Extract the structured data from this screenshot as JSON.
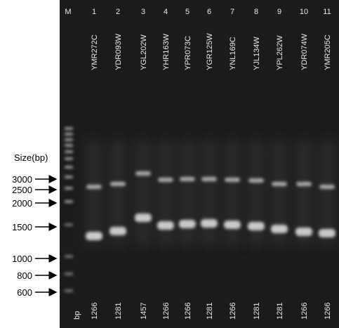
{
  "marker_lane": "M",
  "size_title": "Size(bp)",
  "size_markers": [
    3000,
    2500,
    2000,
    1500,
    1000,
    800,
    600
  ],
  "unit": "bp",
  "lanes": [
    {
      "number": "1",
      "name": "YMR272C",
      "size": 1266
    },
    {
      "number": "2",
      "name": "YDR093W",
      "size": 1281
    },
    {
      "number": "3",
      "name": "YGL202W",
      "size": 1457
    },
    {
      "number": "4",
      "name": "YHR163W",
      "size": 1266
    },
    {
      "number": "5",
      "name": "YPR073C",
      "size": 1266
    },
    {
      "number": "6",
      "name": "YGR125W",
      "size": 1281
    },
    {
      "number": "7",
      "name": "YNL169C",
      "size": 1266
    },
    {
      "number": "8",
      "name": "YJL134W",
      "size": 1281
    },
    {
      "number": "9",
      "name": "YPL262W",
      "size": 1281
    },
    {
      "number": "10",
      "name": "YDR074W",
      "size": 1266
    },
    {
      "number": "11",
      "name": "YMR205C",
      "size": 1266
    }
  ]
}
